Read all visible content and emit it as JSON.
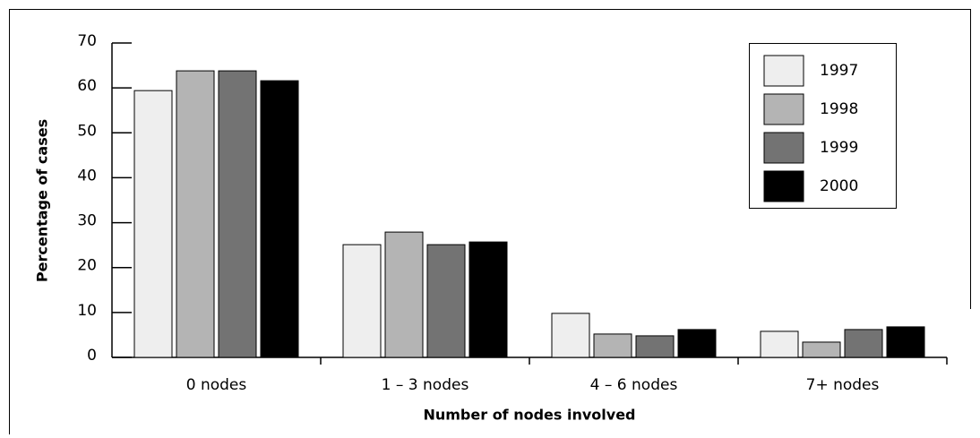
{
  "chart_data": {
    "type": "bar",
    "y_label": "Percentage of cases",
    "x_label": "Number of nodes involved",
    "categories": [
      "0 nodes",
      "1 – 3 nodes",
      "4 – 6 nodes",
      "7+ nodes"
    ],
    "series": [
      {
        "name": "1997",
        "color": "#eeeeee",
        "values": [
          59.4,
          25.1,
          9.8,
          5.8
        ]
      },
      {
        "name": "1998",
        "color": "#b4b4b4",
        "values": [
          63.8,
          27.9,
          5.2,
          3.4
        ]
      },
      {
        "name": "1999",
        "color": "#737373",
        "values": [
          63.8,
          25.1,
          4.8,
          6.2
        ]
      },
      {
        "name": "2000",
        "color": "#000000",
        "values": [
          61.6,
          25.7,
          6.2,
          6.8
        ]
      }
    ],
    "ylim": [
      0,
      70
    ],
    "yticks": [
      0,
      10,
      20,
      30,
      40,
      50,
      60,
      70
    ],
    "legend": "upper right"
  }
}
